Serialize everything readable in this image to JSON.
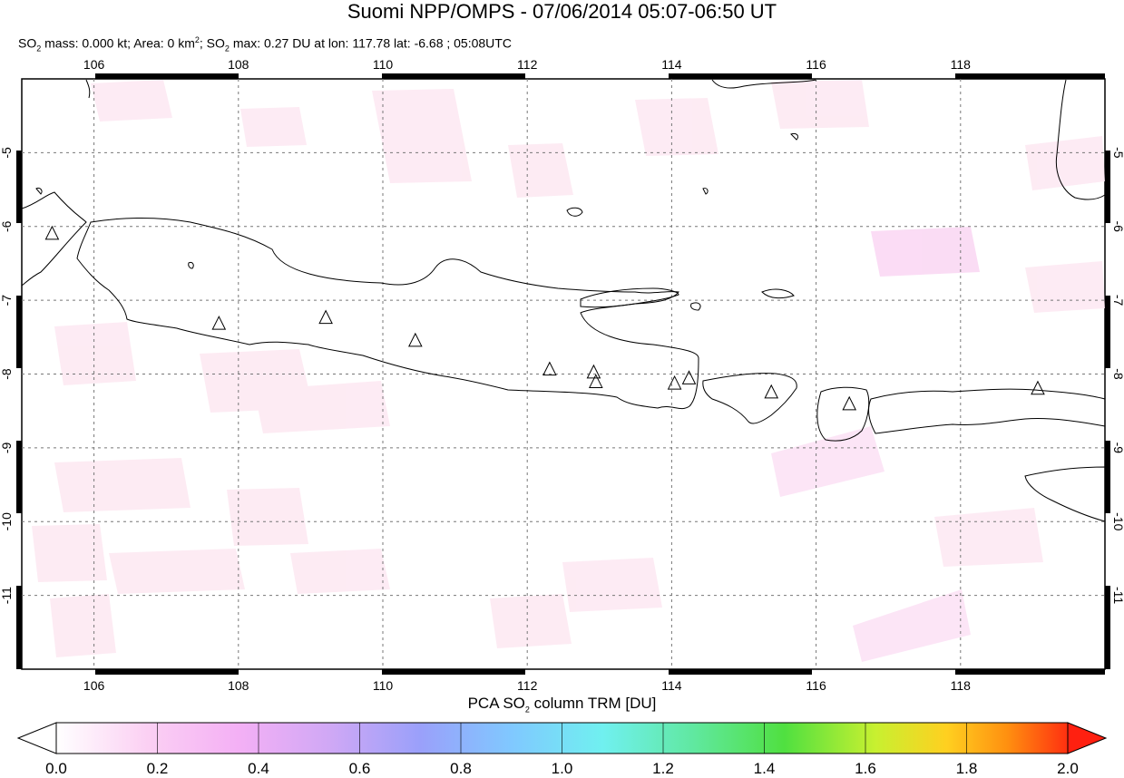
{
  "header": {
    "title": "Suomi NPP/OMPS - 07/06/2014 05:07-06:50 UT",
    "stats": {
      "so2_mass_label": "SO",
      "so2_mass_sub": "2",
      "so2_mass_text": " mass: 0.000 kt; Area: 0 km",
      "area_sup": "2",
      "so2_max_label": "; SO",
      "so2_max_sub": "2",
      "so2_max_text": " max: 0.27 DU at lon: 117.78 lat: -6.68 ; 05:08UTC"
    }
  },
  "map": {
    "lon_range": [
      105,
      120
    ],
    "lat_range": [
      -12,
      -4
    ],
    "lon_ticks": [
      "106",
      "108",
      "110",
      "112",
      "114",
      "116",
      "118"
    ],
    "lat_ticks": [
      "-5",
      "-6",
      "-7",
      "-8",
      "-9",
      "-10",
      "-11"
    ],
    "gridlines": true,
    "volcano_marker": "triangle-icon",
    "volcanoes": [
      {
        "lon": 105.42,
        "lat": -6.1
      },
      {
        "lon": 107.73,
        "lat": -7.32
      },
      {
        "lon": 109.21,
        "lat": -7.24
      },
      {
        "lon": 110.45,
        "lat": -7.55
      },
      {
        "lon": 112.31,
        "lat": -7.94
      },
      {
        "lon": 112.92,
        "lat": -7.98
      },
      {
        "lon": 112.95,
        "lat": -8.11
      },
      {
        "lon": 114.04,
        "lat": -8.13
      },
      {
        "lon": 114.24,
        "lat": -8.06
      },
      {
        "lon": 115.38,
        "lat": -8.25
      },
      {
        "lon": 116.46,
        "lat": -8.41
      },
      {
        "lon": 119.07,
        "lat": -8.2
      }
    ]
  },
  "colorbar": {
    "title_prefix": "PCA SO",
    "title_sub": "2",
    "title_suffix": " column TRM [DU]",
    "min": 0.0,
    "max": 2.0,
    "ticks": [
      "0.0",
      "0.2",
      "0.4",
      "0.6",
      "0.8",
      "1.0",
      "1.2",
      "1.4",
      "1.6",
      "1.8",
      "2.0"
    ],
    "colors": [
      "#ffffff",
      "#fbd0f3",
      "#e8a8f5",
      "#b8a0f5",
      "#8aa8ff",
      "#70e8ff",
      "#60f0b0",
      "#50e050",
      "#c8ff30",
      "#ffd020",
      "#ff8010",
      "#ff2010"
    ]
  }
}
